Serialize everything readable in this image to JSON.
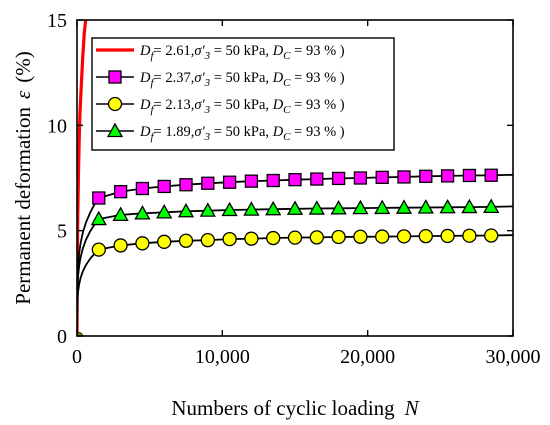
{
  "chart_data": {
    "type": "line",
    "xlabel": "Numbers of cyclic loading",
    "xlabel_var": "N",
    "ylabel": "Permanent deformation",
    "ylabel_var": "ε",
    "ylabel_unit": "(%)",
    "xlim": [
      0,
      30000
    ],
    "ylim": [
      0,
      15
    ],
    "x_ticks": [
      0,
      10000,
      20000,
      30000
    ],
    "x_tick_labels": [
      "0",
      "10,000",
      "20,000",
      "30,000"
    ],
    "y_ticks": [
      0,
      5,
      10,
      15
    ],
    "y_tick_labels": [
      "0",
      "5",
      "10",
      "15"
    ],
    "grid": false,
    "legend_position": "top-right",
    "series": [
      {
        "legend": {
          "df": "2.61",
          "sigma": "50 kPa",
          "dc": "93 %"
        },
        "color": "#ff0000",
        "marker": "none",
        "x": [
          0,
          20,
          50,
          100,
          150,
          200,
          300,
          400,
          500,
          600
        ],
        "y": [
          0,
          3.5,
          5.5,
          7.8,
          9.3,
          10.5,
          12.0,
          13.3,
          14.4,
          15.0
        ]
      },
      {
        "legend": {
          "df": "2.37",
          "sigma": "50 kPa",
          "dc": "93 %"
        },
        "color": "#ff00ff",
        "marker": "square",
        "x": [
          0,
          1500,
          3000,
          4500,
          6000,
          7500,
          9000,
          10500,
          12000,
          13500,
          15000,
          16500,
          18000,
          19500,
          21000,
          22500,
          24000,
          25500,
          27000,
          28500
        ],
        "y": [
          0,
          6.55,
          6.85,
          7.0,
          7.1,
          7.18,
          7.25,
          7.3,
          7.35,
          7.38,
          7.42,
          7.45,
          7.48,
          7.5,
          7.53,
          7.55,
          7.58,
          7.6,
          7.62,
          7.63
        ]
      },
      {
        "legend": {
          "df": "2.13",
          "sigma": "50 kPa",
          "dc": "93 %"
        },
        "color": "#ffff00",
        "marker": "circle",
        "x": [
          0,
          1500,
          3000,
          4500,
          6000,
          7500,
          9000,
          10500,
          12000,
          13500,
          15000,
          16500,
          18000,
          19500,
          21000,
          22500,
          24000,
          25500,
          27000,
          28500
        ],
        "y": [
          0,
          4.1,
          4.3,
          4.4,
          4.47,
          4.52,
          4.55,
          4.6,
          4.62,
          4.65,
          4.67,
          4.68,
          4.7,
          4.71,
          4.72,
          4.73,
          4.74,
          4.75,
          4.76,
          4.77
        ]
      },
      {
        "legend": {
          "df": "1.89",
          "sigma": "50 kPa",
          "dc": "93 %"
        },
        "color": "#00ff00",
        "marker": "triangle",
        "x": [
          0,
          1500,
          3000,
          4500,
          6000,
          7500,
          9000,
          10500,
          12000,
          13500,
          15000,
          16500,
          18000,
          19500,
          21000,
          22500,
          24000,
          25500,
          27000,
          28500
        ],
        "y": [
          0,
          5.55,
          5.75,
          5.82,
          5.87,
          5.92,
          5.95,
          5.98,
          6.0,
          6.02,
          6.04,
          6.05,
          6.06,
          6.07,
          6.08,
          6.09,
          6.1,
          6.11,
          6.12,
          6.13
        ]
      }
    ]
  }
}
